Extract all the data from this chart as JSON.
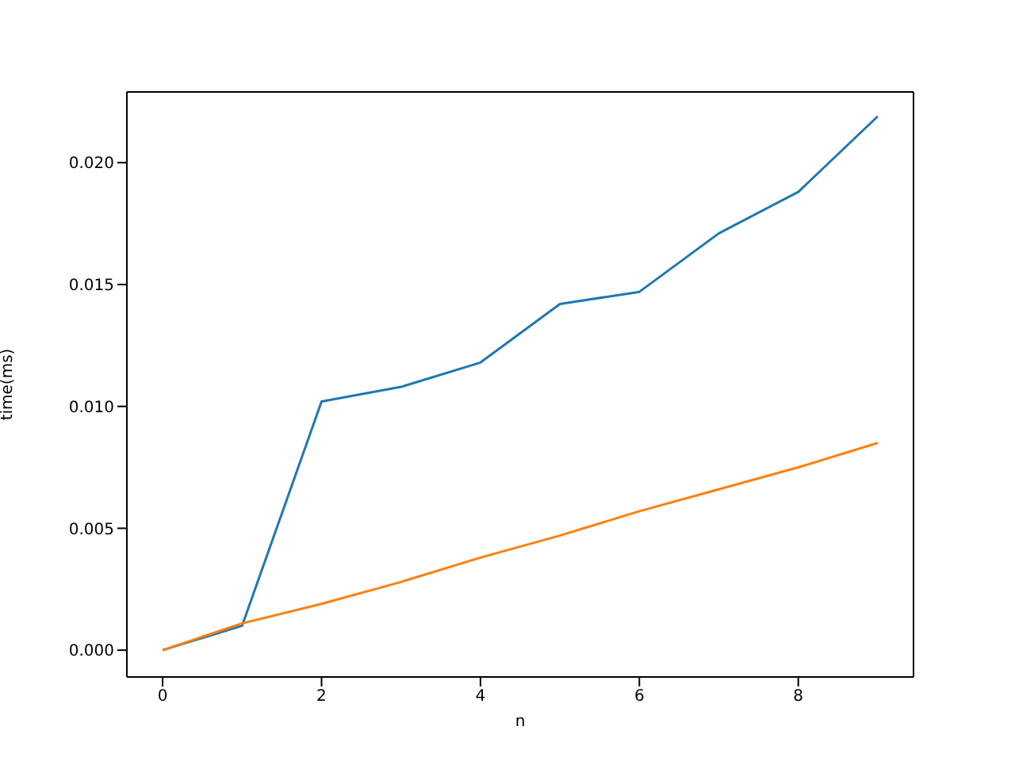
{
  "chart_data": {
    "type": "line",
    "xlabel": "n",
    "ylabel": "time(ms)",
    "x": [
      0,
      1,
      2,
      3,
      4,
      5,
      6,
      7,
      8,
      9
    ],
    "series": [
      {
        "color": "#1f77b4",
        "values": [
          0,
          0.001,
          0.0102,
          0.0108,
          0.0118,
          0.0142,
          0.0147,
          0.0171,
          0.0188,
          0.0219
        ]
      },
      {
        "color": "#ff7f0e",
        "values": [
          0,
          0.0011,
          0.0019,
          0.0028,
          0.0038,
          0.0047,
          0.0057,
          0.0066,
          0.0075,
          0.0085
        ]
      }
    ],
    "xlim": [
      -0.45,
      9.45
    ],
    "xticks": [
      0,
      2,
      4,
      6,
      8
    ],
    "ylim": [
      -0.0011,
      0.0229
    ],
    "yticks": [
      {
        "value": 0,
        "label": "0.000"
      },
      {
        "value": 0.005,
        "label": "0.005"
      },
      {
        "value": 0.01,
        "label": "0.010"
      },
      {
        "value": 0.015,
        "label": "0.015"
      },
      {
        "value": 0.02,
        "label": "0.020"
      }
    ],
    "grid": false,
    "marker": "none",
    "line_style": "solid"
  }
}
